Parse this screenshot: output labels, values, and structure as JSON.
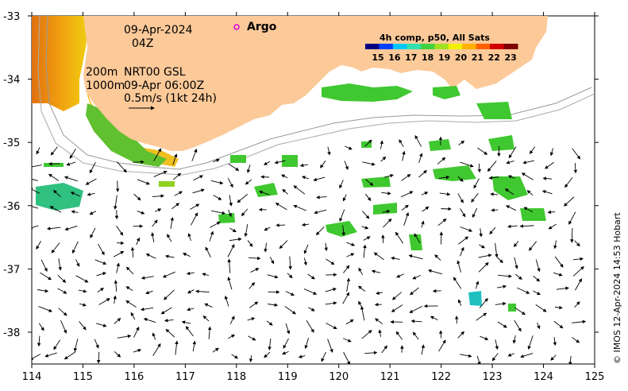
{
  "map": {
    "date_line": "09-Apr-2024",
    "time_line": "04Z",
    "contour_line": "200m",
    "contour_line2": "1000m",
    "source_line": "NRT00 GSL",
    "source_line2": "09-Apr 06:00Z",
    "scale_label": "0.5m/s (1kt 24h)",
    "legend_argo": "Argo",
    "colorbar_title": "4h comp, p50, All Sats",
    "colorbar_ticks": [
      "15",
      "16",
      "17",
      "18",
      "19",
      "20",
      "21",
      "22",
      "23"
    ],
    "credit": "© IMOS 12-Apr-2024 14:53 Hobart",
    "x_ticks": [
      "114",
      "115",
      "116",
      "117",
      "118",
      "119",
      "120",
      "121",
      "122",
      "123",
      "124",
      "125"
    ],
    "y_ticks": [
      "-33",
      "-34",
      "-35",
      "-36",
      "-37",
      "-38"
    ],
    "colors": {
      "land": "#fcc999",
      "colorbar": [
        "#00007f",
        "#0040ff",
        "#00c8ff",
        "#30e0b0",
        "#40d040",
        "#a0e020",
        "#f0f000",
        "#ffb000",
        "#ff6000",
        "#d00000",
        "#800000"
      ],
      "argo": "#e000e0"
    }
  }
}
